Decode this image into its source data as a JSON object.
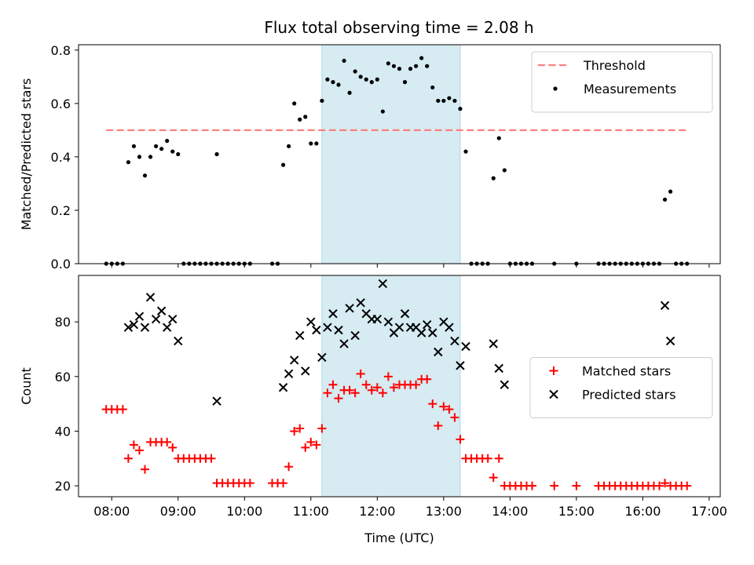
{
  "figure": {
    "title": "Flux total observing time = 2.08 h"
  },
  "chart_data": [
    {
      "type": "scatter",
      "ylabel": "Matched/Predicted stars",
      "xlabel": "",
      "xlim": [
        "07:30",
        "17:10"
      ],
      "ylim": [
        0,
        0.82
      ],
      "y_ticks": [
        "0.0",
        "0.2",
        "0.4",
        "0.6",
        "0.8"
      ],
      "x_ticks": [
        "08:00",
        "09:00",
        "10:00",
        "11:00",
        "12:00",
        "13:00",
        "14:00",
        "15:00",
        "16:00",
        "17:00"
      ],
      "highlight_span": {
        "start": "11:10",
        "end": "13:15",
        "color": "#add8e6"
      },
      "legend": {
        "placement": "top-right"
      },
      "threshold": {
        "name": "Threshold",
        "value": 0.5,
        "x_start": "07:55",
        "x_end": "16:40",
        "color": "#ff7f7f"
      },
      "series": [
        {
          "name": "Measurements",
          "color": "#000000",
          "points": [
            [
              "07:55",
              0
            ],
            [
              "08:00",
              0
            ],
            [
              "08:05",
              0
            ],
            [
              "08:10",
              0
            ],
            [
              "08:15",
              0.38
            ],
            [
              "08:20",
              0.44
            ],
            [
              "08:25",
              0.4
            ],
            [
              "08:30",
              0.33
            ],
            [
              "08:35",
              0.4
            ],
            [
              "08:40",
              0.44
            ],
            [
              "08:45",
              0.43
            ],
            [
              "08:50",
              0.46
            ],
            [
              "08:55",
              0.42
            ],
            [
              "09:00",
              0.41
            ],
            [
              "09:05",
              0
            ],
            [
              "09:10",
              0
            ],
            [
              "09:15",
              0
            ],
            [
              "09:20",
              0
            ],
            [
              "09:25",
              0
            ],
            [
              "09:30",
              0
            ],
            [
              "09:35",
              0
            ],
            [
              "09:35",
              0.41
            ],
            [
              "09:40",
              0
            ],
            [
              "09:45",
              0
            ],
            [
              "09:50",
              0
            ],
            [
              "09:55",
              0
            ],
            [
              "10:00",
              0
            ],
            [
              "10:05",
              0
            ],
            [
              "10:25",
              0
            ],
            [
              "10:30",
              0
            ],
            [
              "10:35",
              0.37
            ],
            [
              "10:40",
              0.44
            ],
            [
              "10:45",
              0.6
            ],
            [
              "10:50",
              0.54
            ],
            [
              "10:55",
              0.55
            ],
            [
              "11:00",
              0.45
            ],
            [
              "11:05",
              0.45
            ],
            [
              "11:10",
              0.61
            ],
            [
              "11:15",
              0.69
            ],
            [
              "11:20",
              0.68
            ],
            [
              "11:25",
              0.67
            ],
            [
              "11:30",
              0.76
            ],
            [
              "11:35",
              0.64
            ],
            [
              "11:40",
              0.72
            ],
            [
              "11:45",
              0.7
            ],
            [
              "11:50",
              0.69
            ],
            [
              "11:55",
              0.68
            ],
            [
              "12:00",
              0.69
            ],
            [
              "12:05",
              0.57
            ],
            [
              "12:10",
              0.75
            ],
            [
              "12:15",
              0.74
            ],
            [
              "12:20",
              0.73
            ],
            [
              "12:25",
              0.68
            ],
            [
              "12:30",
              0.73
            ],
            [
              "12:35",
              0.74
            ],
            [
              "12:40",
              0.77
            ],
            [
              "12:45",
              0.74
            ],
            [
              "12:50",
              0.66
            ],
            [
              "12:55",
              0.61
            ],
            [
              "13:00",
              0.61
            ],
            [
              "13:05",
              0.62
            ],
            [
              "13:10",
              0.61
            ],
            [
              "13:15",
              0.58
            ],
            [
              "13:20",
              0.42
            ],
            [
              "13:25",
              0
            ],
            [
              "13:30",
              0
            ],
            [
              "13:35",
              0
            ],
            [
              "13:40",
              0
            ],
            [
              "13:45",
              0.32
            ],
            [
              "13:50",
              0.47
            ],
            [
              "13:55",
              0.35
            ],
            [
              "14:00",
              0
            ],
            [
              "14:05",
              0
            ],
            [
              "14:10",
              0
            ],
            [
              "14:15",
              0
            ],
            [
              "14:20",
              0
            ],
            [
              "14:40",
              0
            ],
            [
              "15:00",
              0
            ],
            [
              "15:20",
              0
            ],
            [
              "15:25",
              0
            ],
            [
              "15:30",
              0
            ],
            [
              "15:35",
              0
            ],
            [
              "15:40",
              0
            ],
            [
              "15:45",
              0
            ],
            [
              "15:50",
              0
            ],
            [
              "15:55",
              0
            ],
            [
              "16:00",
              0
            ],
            [
              "16:05",
              0
            ],
            [
              "16:10",
              0
            ],
            [
              "16:15",
              0
            ],
            [
              "16:20",
              0.24
            ],
            [
              "16:25",
              0.27
            ],
            [
              "16:30",
              0
            ],
            [
              "16:35",
              0
            ],
            [
              "16:40",
              0
            ]
          ]
        }
      ]
    },
    {
      "type": "scatter",
      "ylabel": "Count",
      "xlabel": "Time (UTC)",
      "xlim": [
        "07:30",
        "17:10"
      ],
      "ylim": [
        16,
        97
      ],
      "y_ticks": [
        "20",
        "40",
        "60",
        "80"
      ],
      "x_ticks": [
        "08:00",
        "09:00",
        "10:00",
        "11:00",
        "12:00",
        "13:00",
        "14:00",
        "15:00",
        "16:00",
        "17:00"
      ],
      "highlight_span": {
        "start": "11:10",
        "end": "13:15",
        "color": "#add8e6"
      },
      "legend": {
        "placement": "center-right"
      },
      "series": [
        {
          "name": "Matched stars",
          "color": "#ff0000",
          "marker": "plus",
          "points": [
            [
              "07:55",
              48
            ],
            [
              "08:00",
              48
            ],
            [
              "08:05",
              48
            ],
            [
              "08:10",
              48
            ],
            [
              "08:15",
              30
            ],
            [
              "08:20",
              35
            ],
            [
              "08:25",
              33
            ],
            [
              "08:30",
              26
            ],
            [
              "08:35",
              36
            ],
            [
              "08:40",
              36
            ],
            [
              "08:45",
              36
            ],
            [
              "08:50",
              36
            ],
            [
              "08:55",
              34
            ],
            [
              "09:00",
              30
            ],
            [
              "09:05",
              30
            ],
            [
              "09:10",
              30
            ],
            [
              "09:15",
              30
            ],
            [
              "09:20",
              30
            ],
            [
              "09:25",
              30
            ],
            [
              "09:30",
              30
            ],
            [
              "09:35",
              21
            ],
            [
              "09:40",
              21
            ],
            [
              "09:45",
              21
            ],
            [
              "09:50",
              21
            ],
            [
              "09:55",
              21
            ],
            [
              "10:00",
              21
            ],
            [
              "10:05",
              21
            ],
            [
              "10:25",
              21
            ],
            [
              "10:30",
              21
            ],
            [
              "10:35",
              21
            ],
            [
              "10:40",
              27
            ],
            [
              "10:45",
              40
            ],
            [
              "10:50",
              41
            ],
            [
              "10:55",
              34
            ],
            [
              "11:00",
              36
            ],
            [
              "11:05",
              35
            ],
            [
              "11:10",
              41
            ],
            [
              "11:15",
              54
            ],
            [
              "11:20",
              57
            ],
            [
              "11:25",
              52
            ],
            [
              "11:30",
              55
            ],
            [
              "11:35",
              55
            ],
            [
              "11:40",
              54
            ],
            [
              "11:45",
              61
            ],
            [
              "11:50",
              57
            ],
            [
              "11:55",
              55
            ],
            [
              "12:00",
              56
            ],
            [
              "12:05",
              54
            ],
            [
              "12:10",
              60
            ],
            [
              "12:15",
              56
            ],
            [
              "12:20",
              57
            ],
            [
              "12:25",
              57
            ],
            [
              "12:30",
              57
            ],
            [
              "12:35",
              57
            ],
            [
              "12:40",
              59
            ],
            [
              "12:45",
              59
            ],
            [
              "12:50",
              50
            ],
            [
              "12:55",
              42
            ],
            [
              "13:00",
              49
            ],
            [
              "13:05",
              48
            ],
            [
              "13:10",
              45
            ],
            [
              "13:15",
              37
            ],
            [
              "13:20",
              30
            ],
            [
              "13:25",
              30
            ],
            [
              "13:30",
              30
            ],
            [
              "13:35",
              30
            ],
            [
              "13:40",
              30
            ],
            [
              "13:45",
              23
            ],
            [
              "13:50",
              30
            ],
            [
              "13:55",
              20
            ],
            [
              "14:00",
              20
            ],
            [
              "14:05",
              20
            ],
            [
              "14:10",
              20
            ],
            [
              "14:15",
              20
            ],
            [
              "14:20",
              20
            ],
            [
              "14:40",
              20
            ],
            [
              "15:00",
              20
            ],
            [
              "15:20",
              20
            ],
            [
              "15:25",
              20
            ],
            [
              "15:30",
              20
            ],
            [
              "15:35",
              20
            ],
            [
              "15:40",
              20
            ],
            [
              "15:45",
              20
            ],
            [
              "15:50",
              20
            ],
            [
              "15:55",
              20
            ],
            [
              "16:00",
              20
            ],
            [
              "16:05",
              20
            ],
            [
              "16:10",
              20
            ],
            [
              "16:15",
              20
            ],
            [
              "16:20",
              21
            ],
            [
              "16:25",
              20
            ],
            [
              "16:30",
              20
            ],
            [
              "16:35",
              20
            ],
            [
              "16:40",
              20
            ]
          ]
        },
        {
          "name": "Predicted stars",
          "color": "#000000",
          "marker": "x",
          "points": [
            [
              "08:15",
              78
            ],
            [
              "08:20",
              79
            ],
            [
              "08:25",
              82
            ],
            [
              "08:30",
              78
            ],
            [
              "08:35",
              89
            ],
            [
              "08:40",
              81
            ],
            [
              "08:45",
              84
            ],
            [
              "08:50",
              78
            ],
            [
              "08:55",
              81
            ],
            [
              "09:00",
              73
            ],
            [
              "09:35",
              51
            ],
            [
              "10:35",
              56
            ],
            [
              "10:40",
              61
            ],
            [
              "10:45",
              66
            ],
            [
              "10:50",
              75
            ],
            [
              "10:55",
              62
            ],
            [
              "11:00",
              80
            ],
            [
              "11:05",
              77
            ],
            [
              "11:10",
              67
            ],
            [
              "11:15",
              78
            ],
            [
              "11:20",
              83
            ],
            [
              "11:25",
              77
            ],
            [
              "11:30",
              72
            ],
            [
              "11:35",
              85
            ],
            [
              "11:40",
              75
            ],
            [
              "11:45",
              87
            ],
            [
              "11:50",
              83
            ],
            [
              "11:55",
              81
            ],
            [
              "12:00",
              81
            ],
            [
              "12:05",
              94
            ],
            [
              "12:10",
              80
            ],
            [
              "12:15",
              76
            ],
            [
              "12:20",
              78
            ],
            [
              "12:25",
              83
            ],
            [
              "12:30",
              78
            ],
            [
              "12:35",
              78
            ],
            [
              "12:40",
              76
            ],
            [
              "12:45",
              79
            ],
            [
              "12:50",
              76
            ],
            [
              "12:55",
              69
            ],
            [
              "13:00",
              80
            ],
            [
              "13:05",
              78
            ],
            [
              "13:10",
              73
            ],
            [
              "13:15",
              64
            ],
            [
              "13:20",
              71
            ],
            [
              "13:45",
              72
            ],
            [
              "13:50",
              63
            ],
            [
              "13:55",
              57
            ],
            [
              "16:20",
              86
            ],
            [
              "16:25",
              73
            ]
          ]
        }
      ]
    }
  ]
}
